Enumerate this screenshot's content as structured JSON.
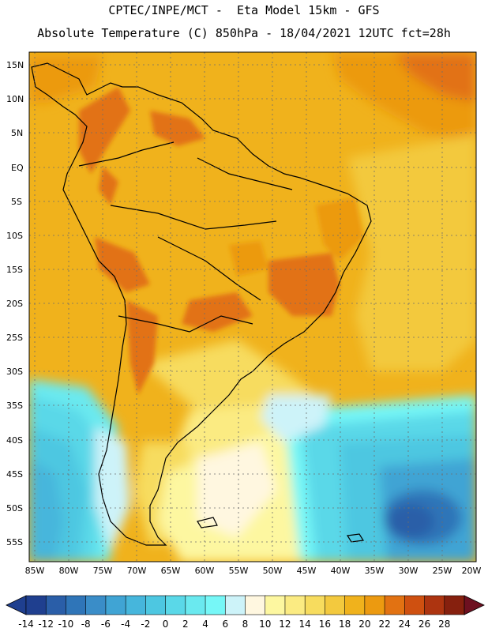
{
  "header": {
    "line1": "CPTEC/INPE/MCT -  Eta Model 15km - GFS",
    "line2": "Absolute Temperature (C) 850hPa - 18/04/2021 12UTC fct=28h"
  },
  "axes": {
    "lat_labels": [
      "15N",
      "10N",
      "5N",
      "EQ",
      "5S",
      "10S",
      "15S",
      "20S",
      "25S",
      "30S",
      "35S",
      "40S",
      "45S",
      "50S",
      "55S"
    ],
    "lon_labels": [
      "85W",
      "80W",
      "75W",
      "70W",
      "65W",
      "60W",
      "55W",
      "50W",
      "45W",
      "40W",
      "35W",
      "30W",
      "25W",
      "20W"
    ]
  },
  "colorbar": {
    "labels": [
      "-14",
      "-12",
      "-10",
      "-8",
      "-6",
      "-4",
      "-2",
      "0",
      "2",
      "4",
      "6",
      "8",
      "10",
      "12",
      "14",
      "16",
      "18",
      "20",
      "22",
      "24",
      "26",
      "28"
    ],
    "colors": [
      "#1f3f8f",
      "#2a5ea8",
      "#2f75b8",
      "#3a8dc8",
      "#40a4d4",
      "#46b6dc",
      "#4dc7e1",
      "#5ad8e8",
      "#6ae9ef",
      "#76f7f7",
      "#cdf3f9",
      "#fff7e0",
      "#fdf7a0",
      "#fbeb82",
      "#f7dc5e",
      "#f3c93e",
      "#f0b21c",
      "#ec9a10",
      "#e27212",
      "#cf5010",
      "#ad3410",
      "#86200e"
    ]
  },
  "chart_data": {
    "type": "heatmap",
    "title": "Absolute Temperature (C) 850hPa - 18/04/2021 12UTC fct=28h",
    "model": "CPTEC/INPE/MCT - Eta Model 15km - GFS",
    "variable": "Absolute Temperature",
    "units": "C",
    "level": "850hPa",
    "date": "18/04/2021 12UTC",
    "forecast": "fct=28h",
    "lon_range": [
      -85,
      -20
    ],
    "lat_range": [
      -57,
      17
    ],
    "color_scale_min": -14,
    "color_scale_max": 28,
    "color_scale_step": 2
  }
}
